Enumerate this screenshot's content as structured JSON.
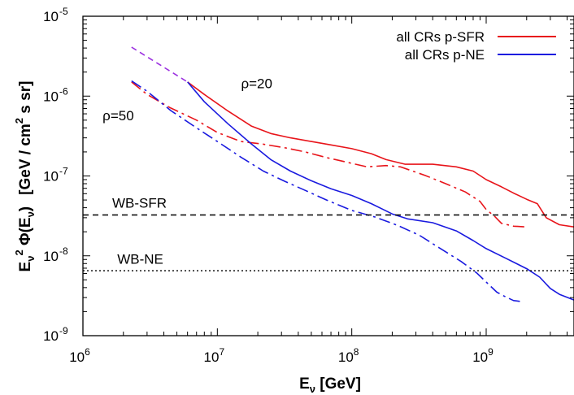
{
  "chart_data": {
    "type": "line",
    "xlabel": {
      "main": "E",
      "sub": "ν",
      "rest": " [GeV]"
    },
    "ylabel": {
      "main": "E",
      "sub": "ν",
      "sup": "2",
      "phi": " Φ(E",
      "phisub": "ν",
      "close": ")",
      "units": "[GeV / cm",
      "units_sup": "2",
      "units_rest": " s sr]"
    },
    "x_scale": "log",
    "y_scale": "log",
    "xlim": [
      1000000,
      4500000000
    ],
    "ylim": [
      1e-09,
      1e-05
    ],
    "x_ticks": [
      {
        "value": 1000000,
        "base": "10",
        "exp": "6"
      },
      {
        "value": 10000000,
        "base": "10",
        "exp": "7"
      },
      {
        "value": 100000000,
        "base": "10",
        "exp": "8"
      },
      {
        "value": 1000000000,
        "base": "10",
        "exp": "9"
      }
    ],
    "y_ticks": [
      {
        "value": 1e-09,
        "base": "10",
        "exp": "-9"
      },
      {
        "value": 1e-08,
        "base": "10",
        "exp": "-8"
      },
      {
        "value": 1e-07,
        "base": "10",
        "exp": "-7"
      },
      {
        "value": 1e-06,
        "base": "10",
        "exp": "-6"
      },
      {
        "value": 1e-05,
        "base": "10",
        "exp": "-5"
      }
    ],
    "legend": {
      "placement": "top-right",
      "entries": [
        {
          "label": "all CRs p-SFR",
          "color": "#e8141a"
        },
        {
          "label": "all CRs p-NE",
          "color": "#1a1adf"
        }
      ]
    },
    "series": [
      {
        "name": "all CRs p-SFR",
        "color": "#e8141a",
        "dash": "solid",
        "x": [
          6000000,
          8000000,
          12000000,
          18000000,
          25000000,
          35000000,
          50000000,
          70000000,
          100000000,
          140000000,
          180000000,
          250000000,
          400000000,
          600000000,
          800000000,
          1000000000,
          1300000000,
          1600000000,
          2000000000,
          2400000000,
          2800000000,
          3500000000,
          4500000000
        ],
        "y": [
          1.5e-06,
          1.05e-06,
          6.5e-07,
          4.2e-07,
          3.4e-07,
          3e-07,
          2.7e-07,
          2.45e-07,
          2.2e-07,
          1.9e-07,
          1.6e-07,
          1.4e-07,
          1.4e-07,
          1.3e-07,
          1.15e-07,
          9e-08,
          7.3e-08,
          6.1e-08,
          5.1e-08,
          4.5e-08,
          3e-08,
          2.45e-08,
          2.3e-08
        ]
      },
      {
        "name": "",
        "color": "#e8141a",
        "dash": "dashdot",
        "x": [
          2300000,
          3000000,
          4500000,
          7000000,
          10000000,
          15000000,
          22000000,
          32000000,
          45000000,
          65000000,
          90000000,
          130000000,
          180000000,
          230000000,
          350000000,
          500000000,
          700000000,
          900000000,
          1000000000,
          1150000000,
          1300000000,
          1600000000,
          2000000000
        ],
        "y": [
          1.5e-06,
          1.05e-06,
          7.1e-07,
          5e-07,
          3.5e-07,
          2.7e-07,
          2.5e-07,
          2.25e-07,
          2e-07,
          1.7e-07,
          1.5e-07,
          1.3e-07,
          1.35e-07,
          1.3e-07,
          1.02e-07,
          8e-08,
          6.3e-08,
          4.8e-08,
          3.8e-08,
          3.15e-08,
          2.55e-08,
          2.35e-08,
          2.3e-08
        ]
      },
      {
        "name": "all CRs p-NE",
        "color": "#1a1adf",
        "dash": "solid",
        "x": [
          6000000,
          8000000,
          12000000,
          18000000,
          25000000,
          35000000,
          50000000,
          70000000,
          100000000,
          140000000,
          200000000,
          260000000,
          400000000,
          600000000,
          800000000,
          1000000000,
          1400000000,
          2000000000,
          2500000000,
          3000000000,
          3500000000,
          4500000000
        ],
        "y": [
          1.5e-06,
          8.5e-07,
          4.5e-07,
          2.5e-07,
          1.6e-07,
          1.15e-07,
          8.7e-08,
          6.9e-08,
          5.7e-08,
          4.5e-08,
          3.35e-08,
          2.9e-08,
          2.6e-08,
          2.05e-08,
          1.55e-08,
          1.23e-08,
          9.3e-09,
          6.9e-09,
          5.4e-09,
          3.9e-09,
          3.3e-09,
          2.8e-09
        ]
      },
      {
        "name": "",
        "color": "#1a1adf",
        "dash": "dashdot",
        "x": [
          2300000,
          3000000,
          4500000,
          7000000,
          10000000,
          15000000,
          22000000,
          32000000,
          45000000,
          65000000,
          100000000,
          150000000,
          220000000,
          320000000,
          450000000,
          650000000,
          850000000,
          1000000000,
          1200000000,
          1400000000,
          1600000000,
          1900000000
        ],
        "y": [
          1.55e-06,
          1.15e-06,
          6.6e-07,
          4e-07,
          2.7e-07,
          1.72e-07,
          1.15e-07,
          8.5e-08,
          6.6e-08,
          5e-08,
          3.7e-08,
          3.05e-08,
          2.4e-08,
          1.8e-08,
          1.25e-08,
          8.5e-09,
          6.1e-09,
          4.7e-09,
          3.5e-09,
          3.05e-09,
          2.75e-09,
          2.65e-09
        ]
      },
      {
        "name": "",
        "color": "#9b30e0",
        "dash": "dashed",
        "x": [
          2300000,
          6000000
        ],
        "y": [
          4.1e-06,
          1.5e-06
        ]
      },
      {
        "name": "WB-SFR",
        "color": "#000000",
        "dash": "dashed",
        "x": [
          1000000,
          4500000000
        ],
        "y": [
          3.25e-08,
          3.25e-08
        ]
      },
      {
        "name": "WB-NE",
        "color": "#000000",
        "dash": "dotted",
        "x": [
          1000000,
          4500000000
        ],
        "y": [
          6.5e-09,
          6.5e-09
        ]
      }
    ],
    "annotations": [
      {
        "text": "ρ=20",
        "x": 15000000,
        "y": 1.25e-06
      },
      {
        "text": "ρ=50",
        "x": 1400000,
        "y": 5e-07
      },
      {
        "text": "WB-SFR",
        "x": 1650000,
        "y": 4e-08
      },
      {
        "text": "WB-NE",
        "x": 1800000,
        "y": 8e-09
      }
    ]
  }
}
